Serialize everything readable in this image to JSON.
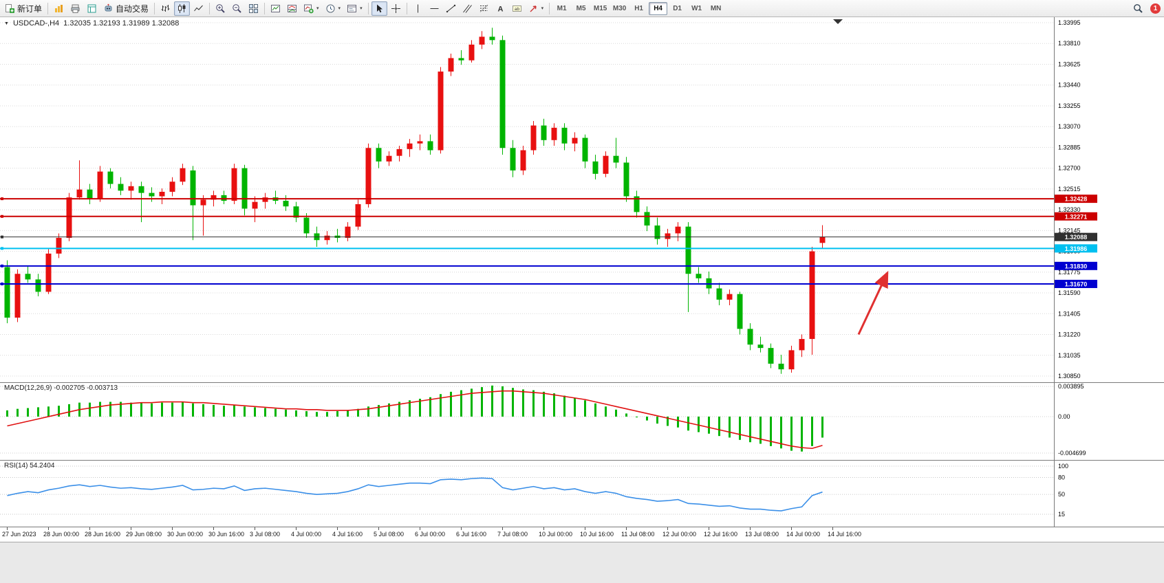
{
  "toolbar": {
    "new_order_label": "新订单",
    "autotrading_label": "自动交易",
    "timeframes": [
      "M1",
      "M5",
      "M15",
      "M30",
      "H1",
      "H4",
      "D1",
      "W1",
      "MN"
    ],
    "active_timeframe": "H4",
    "notification_count": "1"
  },
  "chart_header": {
    "symbol_period": "USDCAD-,H4",
    "ohlc": "1.32035 1.32193 1.31989 1.32088"
  },
  "colors": {
    "candle_up": "#e81010",
    "candle_down": "#00b400",
    "resistance_line": "#cc0000",
    "support_line": "#0000d0",
    "breakout_line": "#00c0f0",
    "current_price_line": "#303030",
    "macd_histogram": "#00b400",
    "macd_signal": "#e01010",
    "rsi_line": "#3a8fe8",
    "arrow": "#e03030",
    "grid": "#d8d8d8"
  },
  "chart_data": [
    {
      "type": "candlestick",
      "symbol": "USDCAD",
      "period": "H4",
      "color_convention": "red-up-green-down",
      "current_bar_ohlc": [
        1.32035,
        1.32193,
        1.31989,
        1.32088
      ],
      "y_axis_ticks": [
        "1.33995",
        "1.33810",
        "1.33625",
        "1.33440",
        "1.33255",
        "1.33070",
        "1.32885",
        "1.32700",
        "1.32515",
        "1.32330",
        "1.32145",
        "1.31960",
        "1.31775",
        "1.31590",
        "1.31405",
        "1.31220",
        "1.31035",
        "1.30850"
      ],
      "x_axis_ticks": [
        "27 Jun 2023",
        "28 Jun 00:00",
        "28 Jun 16:00",
        "29 Jun 08:00",
        "30 Jun 00:00",
        "30 Jun 16:00",
        "3 Jul 08:00",
        "4 Jul 00:00",
        "4 Jul 16:00",
        "5 Jul 08:00",
        "6 Jul 00:00",
        "6 Jul 16:00",
        "7 Jul 08:00",
        "10 Jul 00:00",
        "10 Jul 16:00",
        "11 Jul 08:00",
        "12 Jul 00:00",
        "12 Jul 16:00",
        "13 Jul 08:00",
        "14 Jul 00:00",
        "14 Jul 16:00"
      ],
      "bars_per_x_tick": 4,
      "candles_ohlc": [
        [
          1.3182,
          1.3188,
          1.3132,
          1.3137
        ],
        [
          1.3137,
          1.318,
          1.3133,
          1.3176
        ],
        [
          1.3176,
          1.3183,
          1.3168,
          1.3171
        ],
        [
          1.3171,
          1.3176,
          1.3156,
          1.316
        ],
        [
          1.316,
          1.3198,
          1.3158,
          1.3194
        ],
        [
          1.3194,
          1.3212,
          1.319,
          1.3208
        ],
        [
          1.3208,
          1.3248,
          1.3205,
          1.3244
        ],
        [
          1.3244,
          1.3277,
          1.3242,
          1.3251
        ],
        [
          1.3251,
          1.3256,
          1.3238,
          1.3243
        ],
        [
          1.3243,
          1.3272,
          1.324,
          1.3267
        ],
        [
          1.3267,
          1.327,
          1.3252,
          1.3256
        ],
        [
          1.3256,
          1.3262,
          1.3246,
          1.325
        ],
        [
          1.325,
          1.3258,
          1.3242,
          1.3254
        ],
        [
          1.3254,
          1.3258,
          1.3222,
          1.3248
        ],
        [
          1.3248,
          1.3253,
          1.324,
          1.3245
        ],
        [
          1.3245,
          1.3252,
          1.3238,
          1.3249
        ],
        [
          1.3249,
          1.3262,
          1.3245,
          1.3258
        ],
        [
          1.3258,
          1.3274,
          1.3255,
          1.327
        ],
        [
          1.3268,
          1.3272,
          1.3206,
          1.3237
        ],
        [
          1.3237,
          1.3246,
          1.321,
          1.3242
        ],
        [
          1.3242,
          1.325,
          1.3236,
          1.3246
        ],
        [
          1.3246,
          1.325,
          1.3238,
          1.3241
        ],
        [
          1.3241,
          1.3274,
          1.3238,
          1.327
        ],
        [
          1.327,
          1.3273,
          1.3228,
          1.3234
        ],
        [
          1.3234,
          1.3245,
          1.3222,
          1.324
        ],
        [
          1.324,
          1.3248,
          1.3234,
          1.3244
        ],
        [
          1.3244,
          1.325,
          1.3238,
          1.3241
        ],
        [
          1.3241,
          1.3246,
          1.3232,
          1.3236
        ],
        [
          1.3236,
          1.324,
          1.3222,
          1.3226
        ],
        [
          1.3226,
          1.323,
          1.3208,
          1.3212
        ],
        [
          1.3212,
          1.3218,
          1.32,
          1.3206
        ],
        [
          1.3206,
          1.3214,
          1.3202,
          1.321
        ],
        [
          1.321,
          1.3216,
          1.3204,
          1.3208
        ],
        [
          1.3208,
          1.3222,
          1.3205,
          1.3218
        ],
        [
          1.3218,
          1.3242,
          1.3215,
          1.3238
        ],
        [
          1.3238,
          1.3292,
          1.3235,
          1.3288
        ],
        [
          1.3288,
          1.3292,
          1.327,
          1.3276
        ],
        [
          1.3276,
          1.3285,
          1.3272,
          1.3281
        ],
        [
          1.3281,
          1.329,
          1.3276,
          1.3287
        ],
        [
          1.3287,
          1.3296,
          1.328,
          1.3292
        ],
        [
          1.3292,
          1.33,
          1.3286,
          1.3294
        ],
        [
          1.3294,
          1.33,
          1.3282,
          1.3286
        ],
        [
          1.3286,
          1.336,
          1.3283,
          1.3356
        ],
        [
          1.3356,
          1.3372,
          1.3352,
          1.3368
        ],
        [
          1.3368,
          1.3375,
          1.3362,
          1.3366
        ],
        [
          1.3366,
          1.3384,
          1.3364,
          1.338
        ],
        [
          1.338,
          1.3392,
          1.3376,
          1.3387
        ],
        [
          1.3387,
          1.3395,
          1.338,
          1.3384
        ],
        [
          1.3384,
          1.3388,
          1.3282,
          1.3288
        ],
        [
          1.3288,
          1.3295,
          1.3262,
          1.3268
        ],
        [
          1.3268,
          1.329,
          1.3264,
          1.3286
        ],
        [
          1.3286,
          1.3312,
          1.3282,
          1.3308
        ],
        [
          1.3308,
          1.3314,
          1.329,
          1.3295
        ],
        [
          1.3295,
          1.331,
          1.329,
          1.3306
        ],
        [
          1.3306,
          1.331,
          1.3286,
          1.3292
        ],
        [
          1.3292,
          1.3302,
          1.3285,
          1.3297
        ],
        [
          1.3297,
          1.33,
          1.327,
          1.3276
        ],
        [
          1.3276,
          1.3282,
          1.326,
          1.3265
        ],
        [
          1.3265,
          1.3285,
          1.3262,
          1.3281
        ],
        [
          1.3281,
          1.3297,
          1.327,
          1.3275
        ],
        [
          1.3275,
          1.328,
          1.324,
          1.3245
        ],
        [
          1.3245,
          1.325,
          1.3226,
          1.3231
        ],
        [
          1.3231,
          1.3236,
          1.3214,
          1.3219
        ],
        [
          1.3219,
          1.3226,
          1.3202,
          1.3207
        ],
        [
          1.3207,
          1.3216,
          1.32,
          1.3212
        ],
        [
          1.3212,
          1.3222,
          1.3205,
          1.3218
        ],
        [
          1.3218,
          1.3222,
          1.3142,
          1.3176
        ],
        [
          1.3176,
          1.3182,
          1.3168,
          1.3172
        ],
        [
          1.3172,
          1.3178,
          1.3158,
          1.3163
        ],
        [
          1.3163,
          1.3168,
          1.3148,
          1.3153
        ],
        [
          1.3153,
          1.3162,
          1.3148,
          1.3158
        ],
        [
          1.3158,
          1.316,
          1.3122,
          1.3127
        ],
        [
          1.3127,
          1.3132,
          1.3108,
          1.3113
        ],
        [
          1.3113,
          1.312,
          1.3106,
          1.311
        ],
        [
          1.311,
          1.3114,
          1.3092,
          1.3096
        ],
        [
          1.3096,
          1.3104,
          1.3087,
          1.3091
        ],
        [
          1.3091,
          1.3112,
          1.3088,
          1.3108
        ],
        [
          1.3108,
          1.3122,
          1.3102,
          1.3118
        ],
        [
          1.3118,
          1.32,
          1.3104,
          1.3196
        ],
        [
          1.32035,
          1.32193,
          1.31989,
          1.32088
        ]
      ],
      "horizontal_lines": [
        {
          "price": 1.32428,
          "label": "1.32428",
          "color": "#cc0000",
          "role": "resistance"
        },
        {
          "price": 1.32271,
          "label": "1.32271",
          "color": "#cc0000",
          "role": "resistance"
        },
        {
          "price": 1.32088,
          "label": "1.32088",
          "color": "#303030",
          "role": "current-price"
        },
        {
          "price": 1.31986,
          "label": "1.31986",
          "color": "#00c0f0",
          "role": "support"
        },
        {
          "price": 1.3183,
          "label": "1.31830",
          "color": "#0000d0",
          "role": "support"
        },
        {
          "price": 1.3167,
          "label": "1.31670",
          "color": "#0000d0",
          "role": "support"
        }
      ],
      "arrow_annotation": {
        "from_bar": 82.5,
        "from_price": 1.3122,
        "to_bar": 85.3,
        "to_price": 1.3177
      }
    },
    {
      "type": "macd-histogram",
      "label": "MACD(12,26,9) -0.002705 -0.003713",
      "macd_value": -0.002705,
      "signal_value": -0.003713,
      "y_axis_ticks": [
        "0.003895",
        "0.00",
        "-0.004699"
      ],
      "histogram": [
        0.0008,
        0.001,
        0.0011,
        0.0012,
        0.0013,
        0.0014,
        0.0016,
        0.0018,
        0.0018,
        0.0019,
        0.0019,
        0.0019,
        0.0018,
        0.0018,
        0.0017,
        0.0018,
        0.0018,
        0.0019,
        0.0017,
        0.0016,
        0.0015,
        0.0014,
        0.0015,
        0.0013,
        0.0012,
        0.0011,
        0.001,
        0.0009,
        0.0008,
        0.0007,
        0.0006,
        0.0006,
        0.0007,
        0.0008,
        0.001,
        0.0013,
        0.0015,
        0.0017,
        0.0019,
        0.0021,
        0.0023,
        0.0025,
        0.0029,
        0.0032,
        0.0034,
        0.0036,
        0.0038,
        0.004,
        0.0039,
        0.0037,
        0.0035,
        0.0034,
        0.0032,
        0.003,
        0.0027,
        0.0024,
        0.0021,
        0.0017,
        0.0013,
        0.0009,
        0.0004,
        -0.0001,
        -0.0005,
        -0.0009,
        -0.0012,
        -0.0014,
        -0.0018,
        -0.002,
        -0.0022,
        -0.0025,
        -0.0027,
        -0.003,
        -0.0033,
        -0.0035,
        -0.0038,
        -0.0041,
        -0.0044,
        -0.0045,
        -0.0038,
        -0.002705
      ],
      "signal_line": [
        -0.0012,
        -0.0009,
        -0.0006,
        -0.0003,
        0.0,
        0.0003,
        0.0006,
        0.0009,
        0.0011,
        0.0013,
        0.0015,
        0.0016,
        0.0017,
        0.0018,
        0.0018,
        0.0019,
        0.0019,
        0.0019,
        0.0018,
        0.0018,
        0.0017,
        0.0016,
        0.0015,
        0.0014,
        0.0013,
        0.0012,
        0.0011,
        0.001,
        0.001,
        0.0009,
        0.0009,
        0.0008,
        0.0008,
        0.0008,
        0.0009,
        0.001,
        0.0012,
        0.0014,
        0.0016,
        0.0018,
        0.002,
        0.0022,
        0.0024,
        0.0026,
        0.0028,
        0.003,
        0.0031,
        0.0032,
        0.0033,
        0.0033,
        0.0032,
        0.0031,
        0.003,
        0.0028,
        0.0026,
        0.0024,
        0.0022,
        0.0019,
        0.0016,
        0.0013,
        0.001,
        0.0007,
        0.0004,
        0.0001,
        -0.0002,
        -0.0005,
        -0.0008,
        -0.0011,
        -0.0014,
        -0.0017,
        -0.002,
        -0.0023,
        -0.0026,
        -0.0029,
        -0.0032,
        -0.0035,
        -0.0038,
        -0.004,
        -0.0041,
        -0.003713
      ]
    },
    {
      "type": "rsi-line",
      "label": "RSI(14) 54.2404",
      "value": 54.2404,
      "levels": [
        "100",
        "80",
        "50",
        "15"
      ],
      "values": [
        48,
        52,
        55,
        53,
        58,
        61,
        65,
        67,
        64,
        66,
        63,
        61,
        62,
        60,
        59,
        61,
        63,
        66,
        58,
        59,
        61,
        60,
        65,
        57,
        60,
        61,
        59,
        57,
        55,
        52,
        50,
        51,
        52,
        55,
        60,
        67,
        64,
        66,
        68,
        70,
        70,
        69,
        76,
        77,
        76,
        78,
        79,
        78,
        62,
        58,
        61,
        64,
        60,
        62,
        58,
        60,
        55,
        52,
        55,
        52,
        46,
        43,
        41,
        38,
        39,
        41,
        34,
        33,
        31,
        29,
        30,
        26,
        24,
        24,
        22,
        21,
        25,
        28,
        48,
        54.2404
      ]
    }
  ]
}
